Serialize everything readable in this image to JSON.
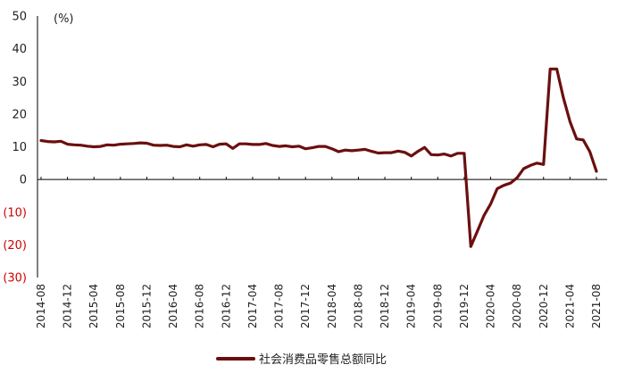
{
  "chart_data": {
    "type": "line",
    "unit_label": "(%)",
    "y_tick_labels": [
      "50",
      "40",
      "30",
      "20",
      "10",
      "0",
      "(10)",
      "(20)",
      "(30)"
    ],
    "y_ticks": [
      50,
      40,
      30,
      20,
      10,
      0,
      -10,
      -20,
      -30
    ],
    "ylim": [
      -30,
      50
    ],
    "x_tick_labels": [
      "2014-08",
      "2014-12",
      "2015-04",
      "2015-08",
      "2015-12",
      "2016-04",
      "2016-08",
      "2016-12",
      "2017-04",
      "2017-08",
      "2017-12",
      "2018-04",
      "2018-08",
      "2018-12",
      "2019-04",
      "2019-08",
      "2019-12",
      "2020-04",
      "2020-08",
      "2020-12",
      "2021-04",
      "2021-08"
    ],
    "grid": false,
    "legend_position": "bottom",
    "colors": {
      "series": "#6b0f0f",
      "text": "#222222",
      "negative_tick": "#d00000",
      "axis": "#000000"
    },
    "series": [
      {
        "name": "社会消费品零售总额同比",
        "x": [
          "2014-08",
          "2014-09",
          "2014-10",
          "2014-11",
          "2014-12",
          "2015-01",
          "2015-02",
          "2015-03",
          "2015-04",
          "2015-05",
          "2015-06",
          "2015-07",
          "2015-08",
          "2015-09",
          "2015-10",
          "2015-11",
          "2015-12",
          "2016-01",
          "2016-02",
          "2016-03",
          "2016-04",
          "2016-05",
          "2016-06",
          "2016-07",
          "2016-08",
          "2016-09",
          "2016-10",
          "2016-11",
          "2016-12",
          "2017-01",
          "2017-02",
          "2017-03",
          "2017-04",
          "2017-05",
          "2017-06",
          "2017-07",
          "2017-08",
          "2017-09",
          "2017-10",
          "2017-11",
          "2017-12",
          "2018-01",
          "2018-02",
          "2018-03",
          "2018-04",
          "2018-05",
          "2018-06",
          "2018-07",
          "2018-08",
          "2018-09",
          "2018-10",
          "2018-11",
          "2018-12",
          "2019-01",
          "2019-02",
          "2019-03",
          "2019-04",
          "2019-05",
          "2019-06",
          "2019-07",
          "2019-08",
          "2019-09",
          "2019-10",
          "2019-11",
          "2019-12",
          "2020-01",
          "2020-02",
          "2020-03",
          "2020-04",
          "2020-05",
          "2020-06",
          "2020-07",
          "2020-08",
          "2020-09",
          "2020-10",
          "2020-11",
          "2020-12",
          "2021-01",
          "2021-02",
          "2021-03",
          "2021-04",
          "2021-05",
          "2021-06",
          "2021-07",
          "2021-08"
        ],
        "values": [
          11.9,
          11.6,
          11.5,
          11.7,
          10.8,
          10.6,
          10.5,
          10.2,
          10.0,
          10.1,
          10.6,
          10.5,
          10.8,
          10.9,
          11.0,
          11.2,
          11.1,
          10.5,
          10.4,
          10.5,
          10.1,
          10.0,
          10.6,
          10.2,
          10.6,
          10.7,
          10.0,
          10.8,
          10.9,
          9.5,
          10.9,
          10.9,
          10.7,
          10.7,
          11.0,
          10.4,
          10.1,
          10.3,
          10.0,
          10.2,
          9.4,
          9.7,
          10.1,
          10.1,
          9.4,
          8.5,
          9.0,
          8.8,
          9.0,
          9.2,
          8.6,
          8.1,
          8.2,
          8.2,
          8.7,
          8.3,
          7.2,
          8.6,
          9.8,
          7.6,
          7.5,
          7.8,
          7.2,
          8.0,
          8.0,
          -20.5,
          -15.8,
          -11.0,
          -7.5,
          -2.8,
          -1.8,
          -1.1,
          0.5,
          3.3,
          4.3,
          5.0,
          4.6,
          33.8,
          33.8,
          25.0,
          17.7,
          12.4,
          12.1,
          8.5,
          2.5
        ]
      }
    ]
  }
}
